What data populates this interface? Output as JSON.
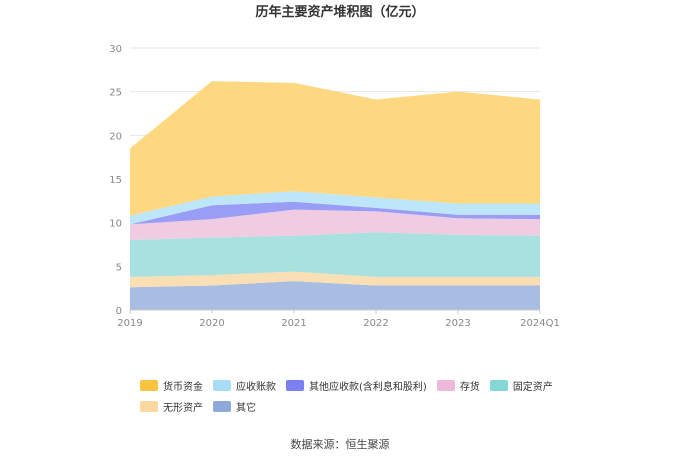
{
  "chart_data": {
    "type": "area",
    "stacked": true,
    "title": "历年主要资产堆积图（亿元）",
    "categories": [
      "2019",
      "2020",
      "2021",
      "2022",
      "2023",
      "2024Q1"
    ],
    "ylim": [
      0,
      30
    ],
    "yticks": [
      0,
      5,
      10,
      15,
      20,
      25,
      30
    ],
    "grid": true,
    "legend_position": "bottom",
    "series": [
      {
        "name": "其它",
        "color": "#a9bde2",
        "values": [
          2.6,
          2.8,
          3.3,
          2.8,
          2.8,
          2.8
        ]
      },
      {
        "name": "无形资产",
        "color": "#fadfb4",
        "values": [
          1.2,
          1.2,
          1.1,
          1.0,
          1.0,
          1.0
        ]
      },
      {
        "name": "固定资产",
        "color": "#a9e1e0",
        "values": [
          4.2,
          4.3,
          4.1,
          5.1,
          4.8,
          4.7
        ]
      },
      {
        "name": "存货",
        "color": "#f0cce3",
        "values": [
          1.8,
          2.1,
          3.0,
          2.4,
          1.9,
          1.9
        ]
      },
      {
        "name": "其他应收款(含利息和股利)",
        "color": "#9a9df6",
        "values": [
          0.0,
          1.6,
          0.9,
          0.4,
          0.4,
          0.5
        ]
      },
      {
        "name": "应收账款",
        "color": "#bde6f8",
        "values": [
          1.0,
          1.0,
          1.2,
          1.2,
          1.3,
          1.3
        ]
      },
      {
        "name": "货币资金",
        "color": "#fdd880",
        "values": [
          7.7,
          13.2,
          12.4,
          11.2,
          12.8,
          11.9
        ]
      }
    ]
  },
  "legend": {
    "items": [
      {
        "label": "货币资金",
        "color": "#f9c440"
      },
      {
        "label": "应收账款",
        "color": "#a8ddf6"
      },
      {
        "label": "其他应收款(含利息和股利)",
        "color": "#7b7ff0"
      },
      {
        "label": "存货",
        "color": "#edb8d9"
      },
      {
        "label": "固定资产",
        "color": "#85d7d6"
      },
      {
        "label": "无形资产",
        "color": "#fcd8a0"
      },
      {
        "label": "其它",
        "color": "#8fa9db"
      }
    ]
  },
  "source": "数据来源：恒生聚源"
}
